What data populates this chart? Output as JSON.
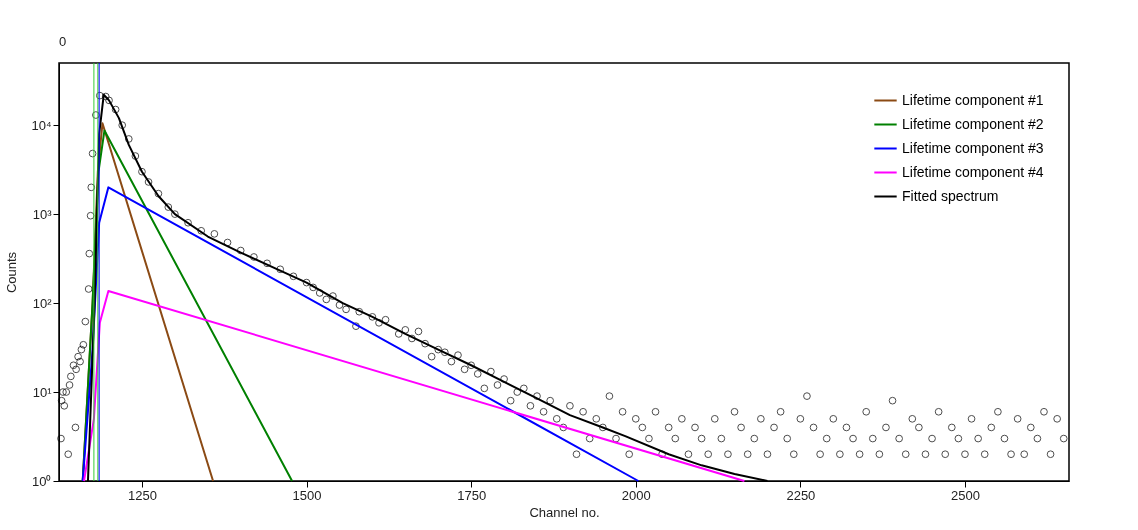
{
  "chart_data": {
    "type": "line",
    "xlabel": "Channel no.",
    "ylabel": "Counts",
    "annotations": [
      "0"
    ],
    "xlim": [
      1124,
      2658
    ],
    "ylim": [
      1,
      50000
    ],
    "log": "y",
    "xticks": [
      1250,
      1500,
      1750,
      2000,
      2250,
      2500
    ],
    "yticks": [
      {
        "value": 1,
        "label": "10⁰"
      },
      {
        "value": 10,
        "label": "10¹"
      },
      {
        "value": 100,
        "label": "10²"
      },
      {
        "value": 1000,
        "label": "10³"
      },
      {
        "value": 10000,
        "label": "10⁴"
      }
    ],
    "grid": false,
    "legend": "top right",
    "line_style": "solid",
    "ref_lines": [
      {
        "axis": "x",
        "value": 1177,
        "label": null,
        "color": "#33cc33"
      },
      {
        "axis": "x",
        "value": 1183,
        "label": null,
        "color": "#33cc33"
      },
      {
        "axis": "x",
        "value": 1185,
        "label": null,
        "color": "#0000ff"
      }
    ],
    "series": [
      {
        "type": "scatter",
        "marker": "circle",
        "color": "#000000",
        "x": [
          1127,
          1128,
          1130,
          1132,
          1135,
          1138,
          1140,
          1142,
          1146,
          1149,
          1150,
          1153,
          1156,
          1158,
          1161,
          1164,
          1169,
          1170,
          1172,
          1173,
          1175,
          1180,
          1186,
          1195,
          1200,
          1210,
          1220,
          1230,
          1240,
          1250,
          1260,
          1275,
          1290,
          1300,
          1320,
          1340,
          1360,
          1380,
          1400,
          1420,
          1440,
          1460,
          1480,
          1500,
          1510,
          1520,
          1530,
          1540,
          1550,
          1560,
          1575,
          1580,
          1600,
          1610,
          1620,
          1640,
          1650,
          1660,
          1670,
          1680,
          1690,
          1700,
          1710,
          1720,
          1730,
          1740,
          1750,
          1760,
          1770,
          1780,
          1790,
          1800,
          1810,
          1820,
          1830,
          1840,
          1850,
          1860,
          1870,
          1880,
          1890,
          1900,
          1910,
          1920,
          1930,
          1940,
          1950,
          1960,
          1970,
          1980,
          1990,
          2000,
          2010,
          2020,
          2030,
          2040,
          2050,
          2060,
          2070,
          2080,
          2090,
          2100,
          2110,
          2120,
          2130,
          2140,
          2150,
          2160,
          2170,
          2180,
          2190,
          2200,
          2210,
          2220,
          2230,
          2240,
          2250,
          2260,
          2270,
          2280,
          2290,
          2300,
          2310,
          2320,
          2330,
          2340,
          2350,
          2360,
          2370,
          2380,
          2390,
          2400,
          2410,
          2420,
          2430,
          2440,
          2450,
          2460,
          2470,
          2480,
          2490,
          2500,
          2510,
          2520,
          2530,
          2540,
          2550,
          2560,
          2570,
          2580,
          2590,
          2600,
          2610,
          2620,
          2630,
          2640,
          2650
        ],
        "values": [
          3,
          8,
          10,
          7,
          10,
          2,
          12,
          15,
          20,
          4,
          18,
          25,
          22,
          30,
          34,
          62,
          144,
          360,
          960,
          2000,
          4800,
          13000,
          21500,
          21000,
          19000,
          15000,
          10000,
          7000,
          4500,
          3000,
          2300,
          1700,
          1200,
          1000,
          800,
          650,
          600,
          480,
          390,
          330,
          280,
          240,
          200,
          170,
          150,
          130,
          110,
          120,
          95,
          85,
          55,
          80,
          70,
          60,
          65,
          45,
          50,
          40,
          48,
          35,
          25,
          30,
          28,
          22,
          26,
          18,
          20,
          16,
          11,
          17,
          12,
          14,
          8,
          10,
          11,
          7,
          9,
          6,
          8,
          5,
          4,
          7,
          2,
          6,
          3,
          5,
          4,
          9,
          3,
          6,
          2,
          5,
          4,
          3,
          6,
          2,
          4,
          3,
          5,
          2,
          4,
          3,
          2,
          5,
          3,
          2,
          6,
          4,
          2,
          3,
          5,
          2,
          4,
          6,
          3,
          2,
          5,
          9,
          4,
          2,
          3,
          5,
          2,
          4,
          3,
          2,
          6,
          3,
          2,
          4,
          8,
          3,
          2,
          5,
          4,
          2,
          3,
          6,
          2,
          4,
          3,
          2,
          5,
          3,
          2,
          4,
          6,
          3,
          2,
          5,
          2,
          4,
          3,
          6,
          2,
          5,
          3
        ]
      },
      {
        "name": "Lifetime component #1",
        "color": "#8b4a14",
        "x": [
          1160,
          1175,
          1183,
          1190,
          1358
        ],
        "values": [
          1,
          100,
          3000,
          10500,
          1
        ]
      },
      {
        "name": "Lifetime component #2",
        "color": "#008000",
        "x": [
          1160,
          1175,
          1184,
          1193,
          1478
        ],
        "values": [
          1,
          100,
          3000,
          8700,
          1
        ]
      },
      {
        "name": "Lifetime component #3",
        "color": "#0000ff",
        "x": [
          1160,
          1175,
          1185,
          1199,
          2004
        ],
        "values": [
          1,
          30,
          800,
          2000,
          1
        ]
      },
      {
        "name": "Lifetime component #4",
        "color": "#ff00ff",
        "x": [
          1162,
          1177,
          1186,
          1199,
          2165
        ],
        "values": [
          1,
          5,
          60,
          137,
          1
        ]
      },
      {
        "name": "Fitted spectrum",
        "color": "#000000",
        "x": [
          1168,
          1178,
          1185,
          1192,
          1200,
          1215,
          1230,
          1250,
          1275,
          1300,
          1350,
          1400,
          1450,
          1500,
          1555,
          1600,
          1650,
          1700,
          1750,
          1800,
          1850,
          1900,
          1950,
          1984,
          2050,
          2100,
          2150,
          2200
        ],
        "values": [
          1,
          100,
          8000,
          22000,
          19000,
          12000,
          6000,
          3000,
          1600,
          1000,
          560,
          370,
          250,
          170,
          100,
          70,
          45,
          30,
          20,
          13,
          8.5,
          5.5,
          4,
          3.2,
          2,
          1.5,
          1.2,
          1
        ]
      }
    ]
  }
}
